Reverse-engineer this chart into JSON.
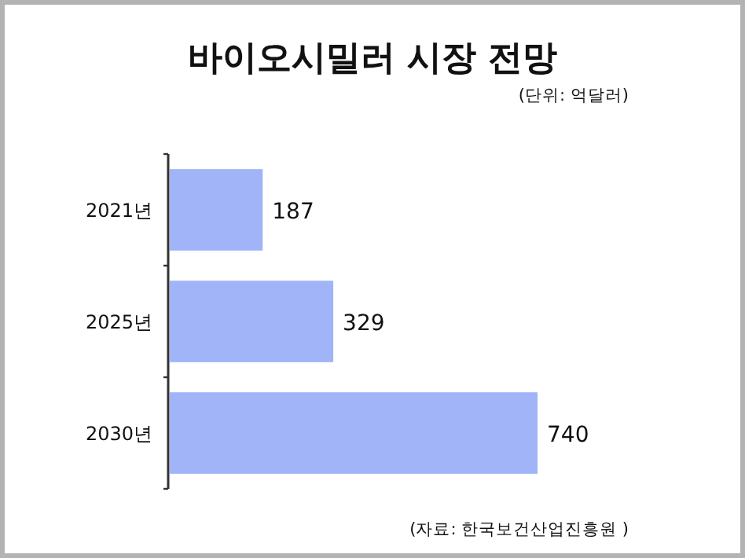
{
  "chart_data": {
    "type": "bar",
    "orientation": "horizontal",
    "title": "바이오시밀러 시장 전망",
    "subtitle": "(단위: 억달러)",
    "annotations": [
      "(자료: 한국보건산업진흥원 )"
    ],
    "categories": [
      "2021년",
      "2025년",
      "2030년"
    ],
    "values": [
      187,
      329,
      740
    ],
    "color": "#a0b4f7",
    "data_labels": true
  }
}
